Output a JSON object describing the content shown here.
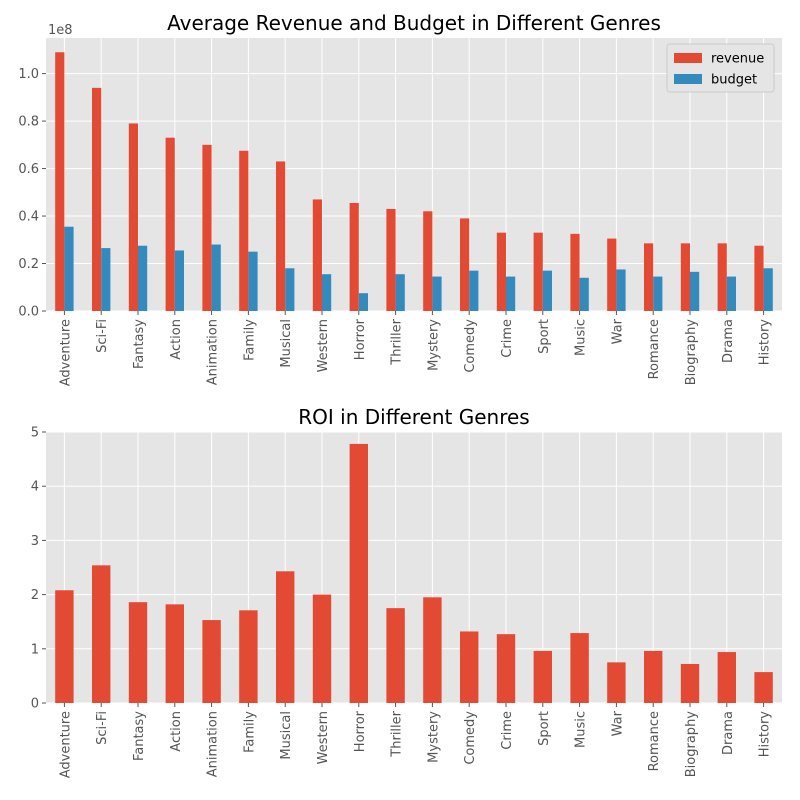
{
  "chart_data": [
    {
      "type": "bar",
      "title": "Average Revenue and Budget in Different Genres",
      "xlabel": "",
      "ylabel": "",
      "scale_label": "1e8",
      "ylim": [
        0,
        1.15
      ],
      "yticks": [
        "0.0",
        "0.2",
        "0.4",
        "0.6",
        "0.8",
        "1.0"
      ],
      "yticks_values": [
        0,
        0.2,
        0.4,
        0.6,
        0.8,
        1.0
      ],
      "grid": true,
      "legend_position": "top-right",
      "categories": [
        "Adventure",
        "Sci-Fi",
        "Fantasy",
        "Action",
        "Animation",
        "Family",
        "Musical",
        "Western",
        "Horror",
        "Thriller",
        "Mystery",
        "Comedy",
        "Crime",
        "Sport",
        "Music",
        "War",
        "Romance",
        "Biography",
        "Drama",
        "History"
      ],
      "series": [
        {
          "name": "revenue",
          "color": "#E24A33",
          "values": [
            1.09,
            0.94,
            0.79,
            0.73,
            0.7,
            0.675,
            0.63,
            0.47,
            0.455,
            0.43,
            0.42,
            0.39,
            0.33,
            0.33,
            0.325,
            0.305,
            0.285,
            0.285,
            0.285,
            0.275
          ]
        },
        {
          "name": "budget",
          "color": "#348ABD",
          "values": [
            0.355,
            0.265,
            0.275,
            0.255,
            0.28,
            0.25,
            0.18,
            0.155,
            0.075,
            0.155,
            0.145,
            0.17,
            0.145,
            0.17,
            0.14,
            0.175,
            0.145,
            0.165,
            0.145,
            0.18
          ]
        }
      ]
    },
    {
      "type": "bar",
      "title": "ROI in Different Genres",
      "xlabel": "",
      "ylabel": "",
      "ylim": [
        0,
        5
      ],
      "yticks": [
        "0",
        "1",
        "2",
        "3",
        "4",
        "5"
      ],
      "yticks_values": [
        0,
        1,
        2,
        3,
        4,
        5
      ],
      "grid": true,
      "categories": [
        "Adventure",
        "Sci-Fi",
        "Fantasy",
        "Action",
        "Animation",
        "Family",
        "Musical",
        "Western",
        "Horror",
        "Thriller",
        "Mystery",
        "Comedy",
        "Crime",
        "Sport",
        "Music",
        "War",
        "Romance",
        "Biography",
        "Drama",
        "History"
      ],
      "series": [
        {
          "name": "ROI",
          "color": "#E24A33",
          "values": [
            2.08,
            2.54,
            1.86,
            1.82,
            1.53,
            1.71,
            2.43,
            2.0,
            4.78,
            1.75,
            1.95,
            1.32,
            1.27,
            0.96,
            1.29,
            0.75,
            0.96,
            0.72,
            0.94,
            0.57
          ]
        }
      ]
    }
  ]
}
